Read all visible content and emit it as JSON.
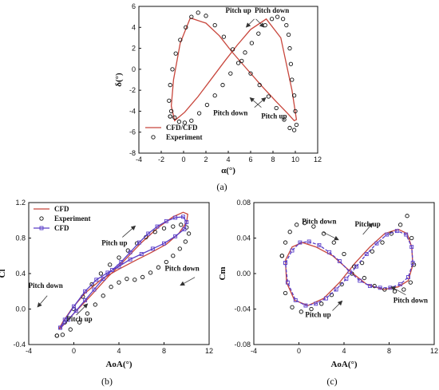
{
  "colors": {
    "cfd_line": "#c8463c",
    "exp_marker": "#111111",
    "cfd_purple": "#5a3ec8",
    "axis": "#111111"
  },
  "chart_data": [
    {
      "id": "a",
      "type": "line",
      "caption": "(a)",
      "xlabel": "α(°)",
      "ylabel": "δ(°)",
      "xlim": [
        -4,
        12
      ],
      "ylim": [
        -8,
        6
      ],
      "xticks": [
        -4,
        -2,
        0,
        2,
        4,
        6,
        8,
        10,
        12
      ],
      "yticks": [
        -8,
        -6,
        -4,
        -2,
        0,
        2,
        4,
        6
      ],
      "legend_position": "bottom-left",
      "series": [
        {
          "name": "CFD/CFD",
          "style": "line",
          "x": [
            0.6,
            2.0,
            3.2,
            4.3,
            5.6,
            7.0,
            8.3,
            9.3,
            9.9,
            10.1,
            9.7,
            8.7,
            7.4,
            6.0,
            4.8,
            3.7,
            2.5,
            1.3,
            0.1,
            -0.8,
            -1.1,
            -0.9,
            -0.3,
            0.6
          ],
          "y": [
            4.9,
            4.4,
            3.2,
            1.7,
            0.1,
            -1.6,
            -3.1,
            -4.2,
            -4.9,
            -4.8,
            -2.0,
            3.0,
            4.8,
            3.8,
            2.3,
            0.8,
            -0.9,
            -2.6,
            -4.1,
            -4.9,
            -3.5,
            -1.0,
            2.5,
            4.9
          ]
        },
        {
          "name": "Experiment",
          "style": "marker-open-circle",
          "x": [
            -1.2,
            -1.3,
            -1.2,
            -1.0,
            -0.7,
            -0.3,
            0.2,
            0.7,
            1.3,
            2.0,
            2.8,
            3.6,
            4.4,
            5.2,
            6.0,
            6.8,
            7.6,
            8.3,
            9.0,
            9.5,
            9.9,
            10.1,
            10.0,
            9.9,
            9.7,
            9.6,
            9.5,
            9.4,
            9.2,
            8.9,
            8.4,
            7.9,
            7.3,
            6.7,
            6.1,
            5.5,
            4.9,
            4.2,
            3.5,
            2.8,
            2.1,
            1.4,
            0.7,
            0.1,
            -0.4,
            -0.8,
            -1.1,
            -1.2
          ],
          "y": [
            -4.5,
            -3.0,
            -1.5,
            0.0,
            1.5,
            2.8,
            4.0,
            5.0,
            5.4,
            5.1,
            4.2,
            3.1,
            1.9,
            0.8,
            -0.4,
            -1.5,
            -2.6,
            -3.7,
            -4.8,
            -5.6,
            -5.8,
            -5.3,
            -4.0,
            -2.5,
            -1.0,
            0.5,
            2.0,
            3.3,
            4.2,
            4.8,
            5.0,
            4.8,
            4.2,
            3.4,
            2.5,
            1.6,
            0.6,
            -0.4,
            -1.5,
            -2.5,
            -3.4,
            -4.2,
            -4.9,
            -5.1,
            -5.0,
            -4.6,
            -4.0,
            -4.5
          ]
        }
      ],
      "annotations": [
        {
          "text": "Pitch up",
          "x": 4.9,
          "y": 5.4
        },
        {
          "text": "Pitch down",
          "x": 7.9,
          "y": 5.4
        },
        {
          "text": "Pitch down",
          "x": 4.2,
          "y": -4.4
        },
        {
          "text": "Pitch up",
          "x": 8.1,
          "y": -4.7
        }
      ]
    },
    {
      "id": "b",
      "type": "line",
      "caption": "(b)",
      "xlabel": "AoA(°)",
      "ylabel": "Cl",
      "xlim": [
        -4,
        12
      ],
      "ylim": [
        -0.4,
        1.2
      ],
      "xticks": [
        -4,
        0,
        4,
        8,
        12
      ],
      "yticks": [
        -0.4,
        0.0,
        0.4,
        0.8,
        1.2
      ],
      "legend_position": "top-left",
      "series": [
        {
          "name": "CFD",
          "style": "line",
          "x": [
            -1.2,
            0.0,
            1.5,
            3.0,
            4.5,
            6.0,
            7.5,
            8.8,
            9.7,
            10.1,
            10.0,
            9.3,
            8.2,
            6.9,
            5.5,
            4.0,
            2.5,
            1.0,
            -0.2,
            -1.0,
            -1.3,
            -1.2
          ],
          "y": [
            -0.22,
            -0.05,
            0.15,
            0.36,
            0.55,
            0.75,
            0.92,
            1.04,
            1.09,
            1.07,
            0.98,
            0.85,
            0.73,
            0.64,
            0.55,
            0.45,
            0.34,
            0.18,
            0.0,
            -0.15,
            -0.22,
            -0.22
          ]
        },
        {
          "name": "Experiment",
          "style": "marker-open-circle",
          "x": [
            -1.5,
            -0.8,
            0.0,
            0.8,
            1.6,
            2.4,
            3.2,
            4.0,
            4.8,
            5.6,
            6.4,
            7.2,
            8.0,
            8.8,
            9.5,
            10.0,
            10.2,
            9.9,
            9.4,
            8.8,
            8.2,
            7.5,
            6.8,
            6.1,
            5.4,
            4.7,
            4.0,
            3.3,
            2.6,
            1.9,
            1.2,
            0.5,
            -0.3,
            -1.0,
            -1.5
          ],
          "y": [
            -0.3,
            -0.15,
            0.0,
            0.14,
            0.28,
            0.4,
            0.5,
            0.58,
            0.66,
            0.74,
            0.81,
            0.87,
            0.91,
            0.93,
            0.95,
            0.92,
            0.85,
            0.76,
            0.68,
            0.6,
            0.53,
            0.47,
            0.41,
            0.36,
            0.33,
            0.34,
            0.3,
            0.25,
            0.15,
            0.05,
            -0.05,
            -0.15,
            -0.23,
            -0.29,
            -0.3
          ]
        },
        {
          "name": "CFD",
          "style": "line-with-open-square",
          "x": [
            -1.2,
            -0.5,
            0.2,
            1.0,
            1.8,
            2.6,
            3.4,
            4.2,
            5.0,
            5.8,
            6.6,
            7.4,
            8.2,
            9.0,
            9.7,
            10.0,
            9.8,
            9.0,
            8.0,
            7.0,
            6.0,
            5.0,
            4.0,
            3.0,
            2.0,
            1.0,
            0.0,
            -0.8,
            -1.2
          ],
          "y": [
            -0.21,
            -0.12,
            -0.02,
            0.1,
            0.22,
            0.34,
            0.44,
            0.53,
            0.64,
            0.75,
            0.85,
            0.93,
            0.99,
            1.03,
            1.04,
            0.98,
            0.9,
            0.82,
            0.74,
            0.68,
            0.62,
            0.56,
            0.48,
            0.41,
            0.33,
            0.2,
            0.03,
            -0.12,
            -0.21
          ]
        }
      ],
      "annotations": [
        {
          "text": "Pitch up",
          "x": 3.6,
          "y": 0.72
        },
        {
          "text": "Pitch down",
          "x": 9.6,
          "y": 0.43
        },
        {
          "text": "Pitch down",
          "x": -2.5,
          "y": 0.24
        },
        {
          "text": "Pitch up",
          "x": 0.5,
          "y": -0.14
        }
      ]
    },
    {
      "id": "c",
      "type": "line",
      "caption": "(c)",
      "xlabel": "AoA(°)",
      "ylabel": "Cm",
      "xlim": [
        -4,
        12
      ],
      "ylim": [
        -0.08,
        0.08
      ],
      "xticks": [
        -4,
        0,
        4,
        8,
        12
      ],
      "yticks": [
        -0.08,
        -0.04,
        0.0,
        0.04,
        0.08
      ],
      "legend_position": "none",
      "series": [
        {
          "name": "",
          "style": "line",
          "color_key": "cfd_line",
          "x": [
            -1.2,
            -0.6,
            0.3,
            1.5,
            3.0,
            4.5,
            6.0,
            7.5,
            8.8,
            9.7,
            10.1,
            10.0,
            9.6,
            8.8,
            7.6,
            6.3,
            5.0,
            3.6,
            2.2,
            0.8,
            -0.4,
            -1.1,
            -1.2
          ],
          "y": [
            0.015,
            0.03,
            0.035,
            0.03,
            0.02,
            0.003,
            -0.012,
            -0.018,
            -0.015,
            -0.008,
            0.01,
            0.03,
            0.045,
            0.05,
            0.045,
            0.03,
            0.012,
            -0.01,
            -0.028,
            -0.036,
            -0.03,
            -0.01,
            0.015
          ]
        },
        {
          "name": "",
          "style": "marker-open-circle",
          "x": [
            -1.5,
            -1.2,
            -0.8,
            -0.2,
            0.5,
            1.3,
            2.2,
            3.1,
            4.0,
            4.9,
            5.8,
            6.7,
            7.6,
            8.5,
            9.3,
            9.9,
            10.2,
            10.0,
            9.6,
            9.0,
            8.2,
            7.4,
            6.5,
            5.6,
            4.7,
            3.8,
            2.9,
            2.0,
            1.1,
            0.2,
            -0.6,
            -1.2,
            -1.5
          ],
          "y": [
            0.02,
            0.035,
            0.047,
            0.055,
            0.057,
            0.053,
            0.045,
            0.035,
            0.022,
            0.008,
            -0.005,
            -0.014,
            -0.018,
            -0.02,
            -0.018,
            -0.01,
            0.01,
            0.04,
            0.065,
            0.055,
            0.045,
            0.035,
            0.025,
            0.012,
            0.0,
            -0.012,
            -0.024,
            -0.034,
            -0.04,
            -0.043,
            -0.038,
            -0.022,
            0.02
          ]
        },
        {
          "name": "",
          "style": "dashed-with-open-square",
          "color_key": "cfd_purple",
          "x": [
            -1.2,
            -0.6,
            0.1,
            0.9,
            1.8,
            2.7,
            3.6,
            4.5,
            5.4,
            6.3,
            7.2,
            8.1,
            9.0,
            9.7,
            10.1,
            10.0,
            9.5,
            8.7,
            7.8,
            6.9,
            6.0,
            5.1,
            4.2,
            3.3,
            2.4,
            1.5,
            0.6,
            -0.3,
            -1.0,
            -1.2
          ],
          "y": [
            0.012,
            0.026,
            0.035,
            0.036,
            0.032,
            0.024,
            0.014,
            0.002,
            -0.008,
            -0.014,
            -0.016,
            -0.016,
            -0.012,
            -0.004,
            0.012,
            0.03,
            0.044,
            0.048,
            0.044,
            0.034,
            0.022,
            0.008,
            -0.006,
            -0.018,
            -0.028,
            -0.034,
            -0.036,
            -0.03,
            -0.01,
            0.012
          ]
        }
      ],
      "annotations": [
        {
          "text": "Pitch down",
          "x": 1.8,
          "y": 0.056
        },
        {
          "text": "Pitch up",
          "x": 6.1,
          "y": 0.053
        },
        {
          "text": "Pitch down",
          "x": 9.9,
          "y": -0.033
        },
        {
          "text": "Pitch up",
          "x": 1.7,
          "y": -0.049
        }
      ]
    }
  ]
}
